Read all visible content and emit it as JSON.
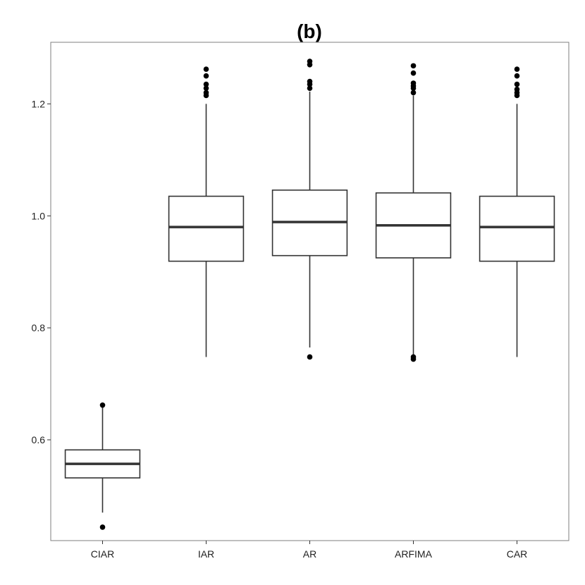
{
  "chart_data": {
    "type": "box",
    "title": "(b)",
    "xlabel": "",
    "ylabel": "",
    "ylim": [
      0.42,
      1.31
    ],
    "y_ticks": [
      0.6,
      0.8,
      1.0,
      1.2
    ],
    "y_tick_labels": [
      "0.6",
      "0.8",
      "1.0",
      "1.2"
    ],
    "grid": false,
    "categories": [
      "CIAR",
      "IAR",
      "AR",
      "ARFIMA",
      "CAR"
    ],
    "boxes": [
      {
        "name": "CIAR",
        "whisker_low": 0.47,
        "q1": 0.532,
        "median": 0.557,
        "q3": 0.582,
        "whisker_high": 0.66,
        "outliers": [
          0.662,
          0.444
        ]
      },
      {
        "name": "IAR",
        "whisker_low": 0.748,
        "q1": 0.919,
        "median": 0.98,
        "q3": 1.035,
        "whisker_high": 1.2,
        "outliers": [
          1.215,
          1.22,
          1.228,
          1.235,
          1.25,
          1.262
        ]
      },
      {
        "name": "AR",
        "whisker_low": 0.765,
        "q1": 0.929,
        "median": 0.989,
        "q3": 1.046,
        "whisker_high": 1.222,
        "outliers": [
          0.748,
          1.228,
          1.235,
          1.24,
          1.27,
          1.276
        ]
      },
      {
        "name": "ARFIMA",
        "whisker_low": 0.752,
        "q1": 0.925,
        "median": 0.983,
        "q3": 1.041,
        "whisker_high": 1.215,
        "outliers": [
          0.744,
          0.748,
          1.22,
          1.228,
          1.232,
          1.237,
          1.255,
          1.268
        ]
      },
      {
        "name": "CAR",
        "whisker_low": 0.748,
        "q1": 0.919,
        "median": 0.98,
        "q3": 1.035,
        "whisker_high": 1.2,
        "outliers": [
          1.215,
          1.22,
          1.226,
          1.235,
          1.25,
          1.262
        ]
      }
    ]
  }
}
